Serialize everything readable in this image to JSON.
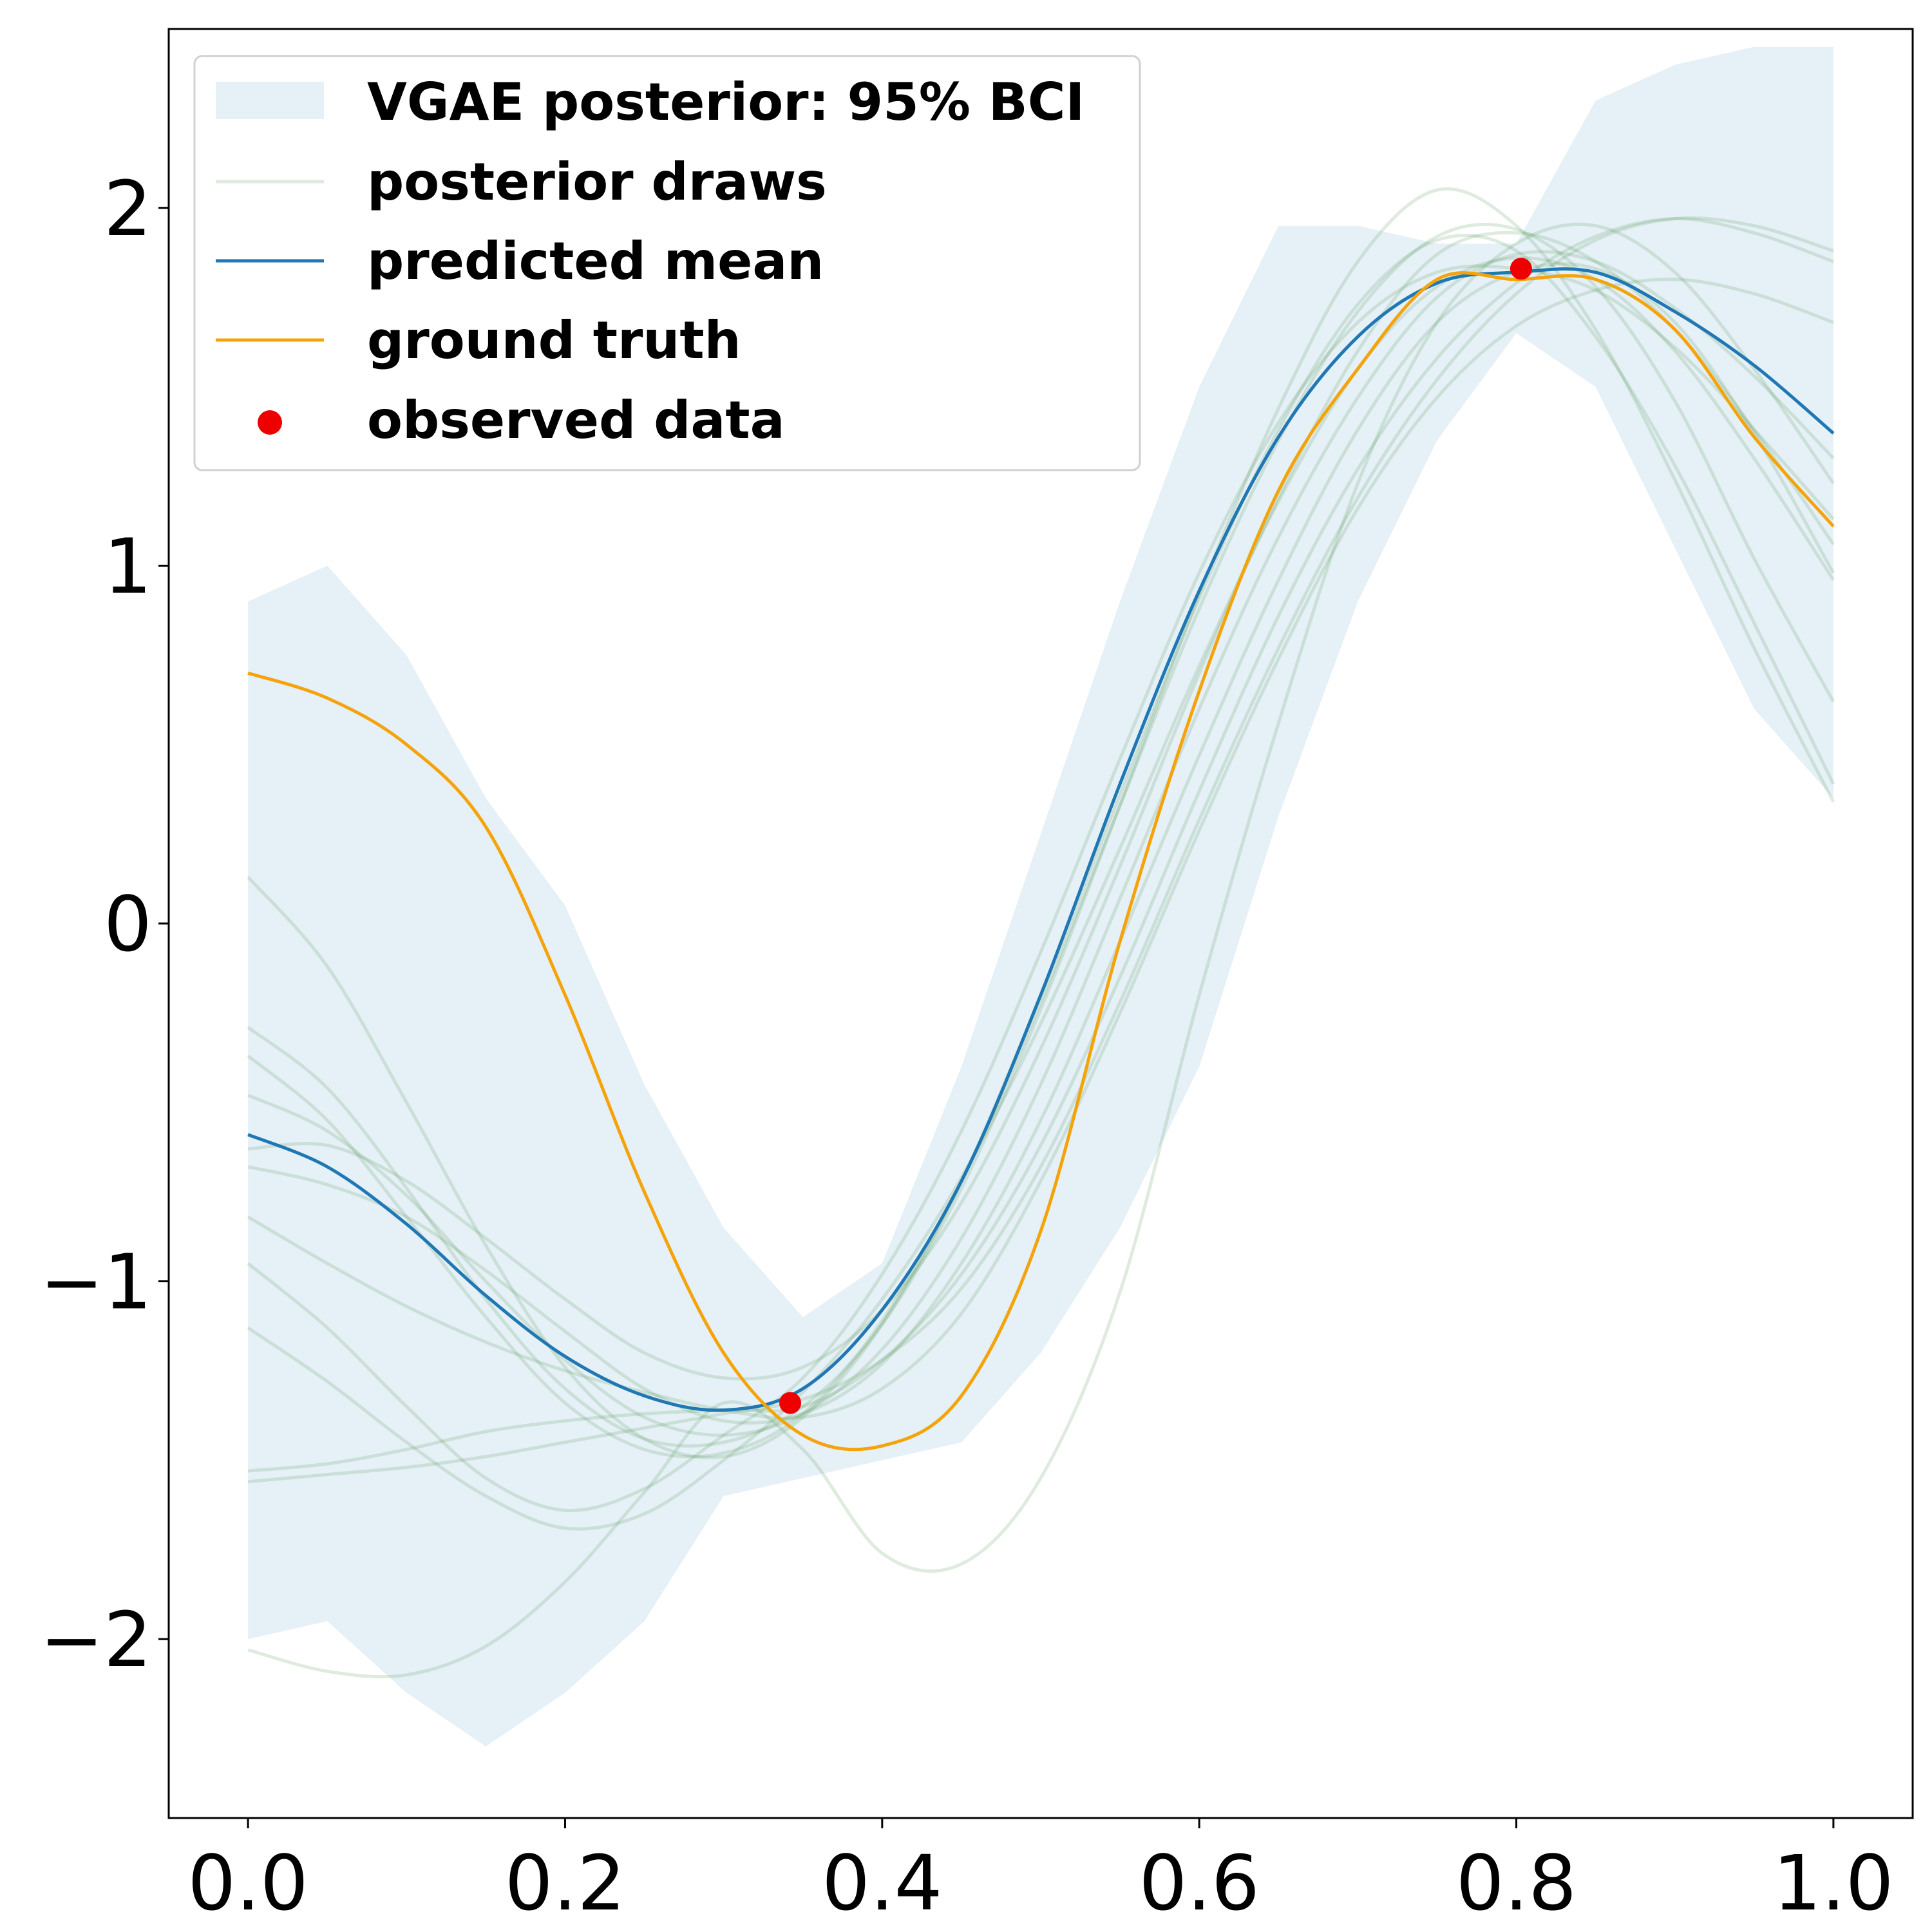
{
  "chart_data": {
    "type": "line",
    "title": "",
    "xlabel": "",
    "ylabel": "",
    "xlim": [
      -0.05,
      1.05
    ],
    "ylim": [
      -2.5,
      2.5
    ],
    "xticks": [
      0.0,
      0.2,
      0.4,
      0.6,
      0.8,
      1.0
    ],
    "xtick_labels": [
      "0.0",
      "0.2",
      "0.4",
      "0.6",
      "0.8",
      "1.0"
    ],
    "yticks": [
      -2,
      -1,
      0,
      1,
      2
    ],
    "ytick_labels": [
      "−2",
      "−1",
      "0",
      "1",
      "2"
    ],
    "grid": false,
    "legend_position": "upper-left",
    "legend": [
      {
        "kind": "band",
        "label": "VGAE posterior: 95% BCI",
        "color": "#e6f0f7"
      },
      {
        "kind": "line",
        "label": "posterior draws",
        "color": "#5a9a5a"
      },
      {
        "kind": "line",
        "label": "predicted mean",
        "color": "#1f77b4"
      },
      {
        "kind": "line",
        "label": "ground truth",
        "color": "#f5a30a"
      },
      {
        "kind": "point",
        "label": "observed data",
        "color": "#ee0000"
      }
    ],
    "x": [
      0.0,
      0.05,
      0.1,
      0.15,
      0.2,
      0.25,
      0.3,
      0.35,
      0.4,
      0.45,
      0.5,
      0.55,
      0.6,
      0.65,
      0.7,
      0.75,
      0.8,
      0.85,
      0.9,
      0.95,
      1.0
    ],
    "band": {
      "lower": [
        -2.0,
        -1.95,
        -2.15,
        -2.3,
        -2.15,
        -1.95,
        -1.6,
        -1.55,
        -1.5,
        -1.45,
        -1.2,
        -0.85,
        -0.4,
        0.3,
        0.9,
        1.35,
        1.65,
        1.5,
        1.05,
        0.6,
        0.35
      ],
      "upper": [
        0.9,
        1.0,
        0.75,
        0.35,
        0.05,
        -0.45,
        -0.85,
        -1.1,
        -0.95,
        -0.4,
        0.25,
        0.9,
        1.5,
        1.95,
        1.95,
        1.9,
        1.9,
        2.3,
        2.4,
        2.45,
        2.45
      ]
    },
    "series": [
      {
        "name": "predicted mean",
        "color": "#1f77b4",
        "values": [
          -0.59,
          -0.68,
          -0.84,
          -1.04,
          -1.21,
          -1.32,
          -1.36,
          -1.3,
          -1.08,
          -0.72,
          -0.2,
          0.39,
          0.93,
          1.36,
          1.64,
          1.79,
          1.82,
          1.82,
          1.71,
          1.56,
          1.37
        ]
      },
      {
        "name": "ground truth",
        "color": "#f5a30a",
        "values": [
          0.7,
          0.63,
          0.5,
          0.27,
          -0.2,
          -0.75,
          -1.2,
          -1.43,
          -1.46,
          -1.32,
          -0.86,
          -0.05,
          0.65,
          1.21,
          1.55,
          1.8,
          1.8,
          1.8,
          1.66,
          1.36,
          1.11
        ]
      }
    ],
    "draws": [
      [
        -0.82,
        -0.95,
        -1.07,
        -1.17,
        -1.25,
        -1.31,
        -1.36,
        -1.38,
        -1.3,
        -1.09,
        -0.72,
        -0.25,
        0.26,
        0.74,
        1.16,
        1.47,
        1.67,
        1.77,
        1.8,
        1.76,
        1.68
      ],
      [
        -1.56,
        -1.54,
        -1.52,
        -1.49,
        -1.45,
        -1.41,
        -1.37,
        -1.33,
        -1.22,
        -1.02,
        -0.68,
        -0.22,
        0.29,
        0.77,
        1.19,
        1.52,
        1.76,
        1.91,
        1.97,
        1.95,
        1.88
      ],
      [
        -0.63,
        -0.62,
        -0.72,
        -0.88,
        -1.05,
        -1.2,
        -1.27,
        -1.24,
        -1.08,
        -0.78,
        -0.35,
        0.16,
        0.7,
        1.19,
        1.6,
        1.87,
        1.93,
        1.85,
        1.66,
        1.38,
        1.06
      ],
      [
        -0.29,
        -0.46,
        -0.74,
        -1.05,
        -1.3,
        -1.44,
        -1.45,
        -1.35,
        -1.12,
        -0.74,
        -0.24,
        0.33,
        0.92,
        1.44,
        1.85,
        2.05,
        1.95,
        1.66,
        1.24,
        0.77,
        0.34
      ],
      [
        -1.13,
        -1.28,
        -1.45,
        -1.6,
        -1.69,
        -1.65,
        -1.5,
        -1.31,
        -1.05,
        -0.71,
        -0.28,
        0.21,
        0.72,
        1.18,
        1.55,
        1.78,
        1.86,
        1.8,
        1.6,
        1.3,
        0.96
      ],
      [
        0.13,
        -0.12,
        -0.5,
        -0.9,
        -1.24,
        -1.44,
        -1.49,
        -1.38,
        -1.12,
        -0.72,
        -0.2,
        0.36,
        0.91,
        1.38,
        1.73,
        1.91,
        1.88,
        1.64,
        1.28,
        0.84,
        0.39
      ],
      [
        -2.03,
        -2.09,
        -2.1,
        -2.02,
        -1.84,
        -1.59,
        -1.34,
        -1.47,
        -1.76,
        -1.79,
        -1.55,
        -1.03,
        -0.2,
        0.56,
        1.23,
        1.68,
        1.9,
        1.95,
        1.82,
        1.55,
        1.23
      ],
      [
        -0.95,
        -1.13,
        -1.35,
        -1.55,
        -1.64,
        -1.58,
        -1.43,
        -1.27,
        -0.98,
        -0.58,
        -0.08,
        0.46,
        0.98,
        1.4,
        1.68,
        1.82,
        1.83,
        1.77,
        1.61,
        1.38,
        1.13
      ],
      [
        -0.68,
        -0.73,
        -0.82,
        -0.97,
        -1.14,
        -1.3,
        -1.39,
        -1.37,
        -1.23,
        -0.95,
        -0.55,
        -0.05,
        0.47,
        0.96,
        1.38,
        1.68,
        1.82,
        1.83,
        1.68,
        1.37,
        0.98
      ],
      [
        -1.53,
        -1.51,
        -1.47,
        -1.42,
        -1.39,
        -1.37,
        -1.36,
        -1.35,
        -1.22,
        -0.98,
        -0.62,
        -0.15,
        0.37,
        0.86,
        1.27,
        1.58,
        1.79,
        1.92,
        1.97,
        1.93,
        1.85
      ],
      [
        -0.48,
        -0.58,
        -0.76,
        -1.0,
        -1.22,
        -1.38,
        -1.43,
        -1.37,
        -1.19,
        -0.88,
        -0.45,
        0.07,
        0.6,
        1.08,
        1.47,
        1.75,
        1.87,
        1.85,
        1.72,
        1.53,
        1.3
      ],
      [
        -0.37,
        -0.55,
        -0.82,
        -1.1,
        -1.34,
        -1.47,
        -1.48,
        -1.37,
        -1.11,
        -0.72,
        -0.22,
        0.33,
        0.88,
        1.35,
        1.71,
        1.92,
        1.94,
        1.78,
        1.46,
        1.02,
        0.62
      ]
    ],
    "observed": [
      {
        "x": 0.342,
        "y": -1.34
      },
      {
        "x": 0.803,
        "y": 1.83
      }
    ]
  }
}
